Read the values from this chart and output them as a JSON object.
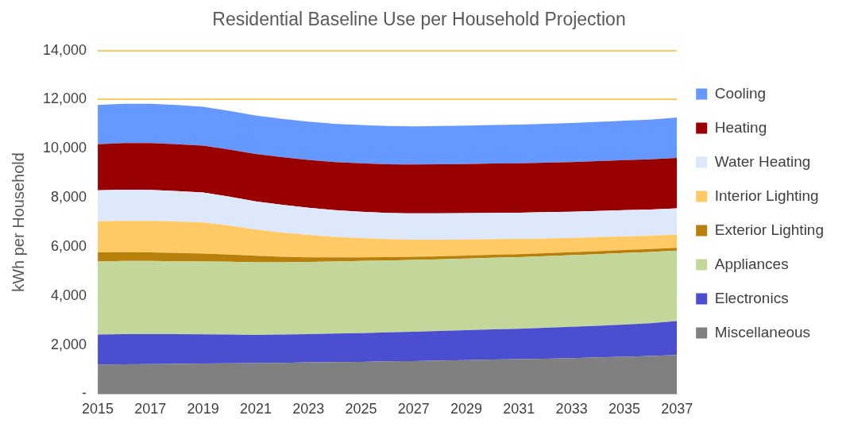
{
  "chart_data": {
    "type": "area",
    "title": "Residential Baseline Use per Household Projection",
    "ylabel": "kWh per Household",
    "stacked": true,
    "legend": "right",
    "grid": "y",
    "categories": [
      "2015",
      null,
      "2017",
      null,
      "2019",
      null,
      "2021",
      null,
      "2023",
      null,
      "2025",
      null,
      "2027",
      null,
      "2029",
      null,
      "2031",
      null,
      "2033",
      null,
      "2035",
      null,
      "2037"
    ],
    "ylim": [
      0,
      14000
    ],
    "yticks": [
      {
        "value": 0,
        "label": "-"
      },
      {
        "value": 2000,
        "label": "2,000"
      },
      {
        "value": 4000,
        "label": "4,000"
      },
      {
        "value": 6000,
        "label": "6,000"
      },
      {
        "value": 8000,
        "label": "8,000"
      },
      {
        "value": 10000,
        "label": "10,000"
      },
      {
        "value": 12000,
        "label": "12,000"
      },
      {
        "value": 14000,
        "label": "14,000"
      }
    ],
    "series": [
      {
        "name": "Miscellaneous",
        "color": "#808080",
        "values": [
          1200,
          1210,
          1220,
          1230,
          1240,
          1250,
          1260,
          1270,
          1290,
          1300,
          1310,
          1330,
          1340,
          1360,
          1380,
          1400,
          1420,
          1440,
          1460,
          1490,
          1520,
          1550,
          1590
        ]
      },
      {
        "name": "Electronics",
        "color": "#4b4fcf",
        "values": [
          1220,
          1230,
          1220,
          1210,
          1190,
          1170,
          1150,
          1150,
          1150,
          1160,
          1170,
          1180,
          1200,
          1210,
          1220,
          1230,
          1240,
          1260,
          1280,
          1290,
          1310,
          1330,
          1380
        ]
      },
      {
        "name": "Appliances",
        "color": "#c4d79b",
        "values": [
          2980,
          2980,
          2980,
          2970,
          2970,
          2970,
          2960,
          2950,
          2940,
          2940,
          2940,
          2930,
          2920,
          2920,
          2920,
          2920,
          2920,
          2920,
          2920,
          2920,
          2920,
          2910,
          2870
        ]
      },
      {
        "name": "Exterior Lighting",
        "color": "#b8800a",
        "values": [
          370,
          360,
          350,
          340,
          320,
          290,
          260,
          220,
          190,
          170,
          150,
          140,
          130,
          120,
          120,
          120,
          120,
          120,
          120,
          120,
          120,
          120,
          120
        ]
      },
      {
        "name": "Interior Lighting",
        "color": "#ffc966",
        "values": [
          1260,
          1280,
          1290,
          1280,
          1270,
          1180,
          1070,
          990,
          910,
          830,
          780,
          730,
          700,
          680,
          660,
          640,
          620,
          600,
          580,
          570,
          550,
          540,
          540
        ]
      },
      {
        "name": "Water Heating",
        "color": "#dde8fb",
        "values": [
          1270,
          1270,
          1260,
          1240,
          1220,
          1180,
          1150,
          1130,
          1110,
          1090,
          1080,
          1070,
          1070,
          1070,
          1070,
          1070,
          1070,
          1070,
          1070,
          1070,
          1070,
          1070,
          1070
        ]
      },
      {
        "name": "Heating",
        "color": "#990000",
        "values": [
          1880,
          1900,
          1910,
          1910,
          1910,
          1920,
          1930,
          1940,
          1950,
          1960,
          1970,
          1980,
          1990,
          2000,
          2000,
          2010,
          2010,
          2020,
          2020,
          2030,
          2040,
          2040,
          2050
        ]
      },
      {
        "name": "Cooling",
        "color": "#6699ff",
        "values": [
          1600,
          1600,
          1600,
          1600,
          1590,
          1580,
          1570,
          1560,
          1560,
          1560,
          1560,
          1560,
          1560,
          1560,
          1570,
          1570,
          1580,
          1580,
          1590,
          1600,
          1610,
          1620,
          1650
        ]
      }
    ]
  }
}
